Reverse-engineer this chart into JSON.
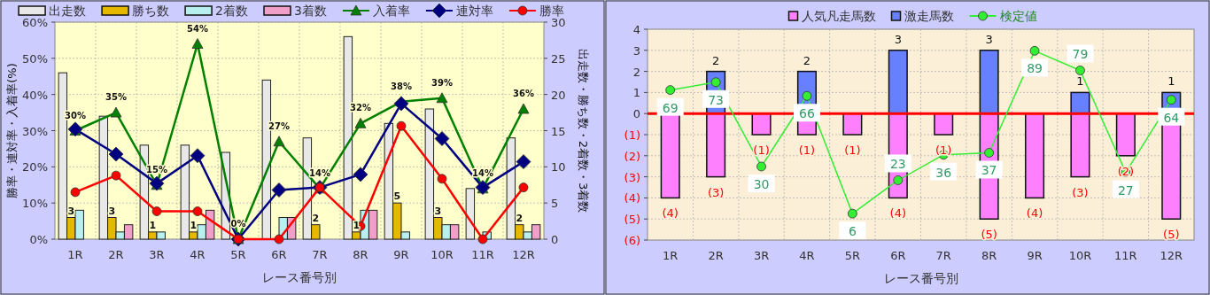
{
  "chart_data": [
    {
      "type": "bar",
      "categories": [
        "1R",
        "2R",
        "3R",
        "4R",
        "5R",
        "6R",
        "7R",
        "8R",
        "9R",
        "10R",
        "11R",
        "12R"
      ],
      "series": [
        {
          "name": "出走数",
          "color": "#e8e8e8",
          "axis": "y2",
          "values": [
            23,
            17,
            13,
            13,
            12,
            22,
            14,
            28,
            16,
            18,
            7,
            14
          ]
        },
        {
          "name": "勝ち数",
          "color": "#e6b800",
          "axis": "y2",
          "values": [
            3,
            3,
            1,
            1,
            0,
            0,
            2,
            1,
            5,
            3,
            0,
            2
          ],
          "value_labels": [
            "3",
            "3",
            "1",
            "1",
            null,
            null,
            "2",
            "1",
            "5",
            "3",
            null,
            "2"
          ]
        },
        {
          "name": "2着数",
          "color": "#b8f0f0",
          "axis": "y2",
          "values": [
            4,
            1,
            1,
            2,
            0,
            3,
            0,
            4,
            1,
            2,
            1,
            1
          ]
        },
        {
          "name": "3着数",
          "color": "#f0a0c8",
          "axis": "y2",
          "values": [
            0,
            2,
            0,
            4,
            0,
            3,
            0,
            4,
            0,
            2,
            0,
            2
          ]
        },
        {
          "name": "入着率",
          "type": "line",
          "color": "#008000",
          "marker": "triangle",
          "values": [
            30,
            35,
            15,
            54,
            0,
            27,
            14,
            32,
            38,
            39,
            14,
            36
          ],
          "value_labels": [
            "30%",
            "35%",
            "15%",
            "54%",
            "0%",
            "27%",
            "14%",
            "32%",
            "38%",
            "39%",
            "14%",
            "36%"
          ]
        },
        {
          "name": "連対率",
          "type": "line",
          "color": "#000080",
          "marker": "diamond",
          "values": [
            30.4,
            23.5,
            15.4,
            23.1,
            0,
            13.6,
            14.3,
            17.9,
            37.5,
            27.8,
            14.3,
            21.4
          ]
        },
        {
          "name": "勝率",
          "type": "line",
          "color": "#ff0000",
          "marker": "circle",
          "values": [
            13.0,
            17.6,
            7.7,
            7.7,
            0,
            0,
            14.3,
            3.6,
            31.3,
            16.7,
            0,
            14.3
          ]
        }
      ],
      "ylim": [
        0,
        60
      ],
      "yticks": [
        {
          "value": 0,
          "label": "0%"
        },
        {
          "value": 10,
          "label": "10%"
        },
        {
          "value": 20,
          "label": "20%"
        },
        {
          "value": 30,
          "label": "30%"
        },
        {
          "value": 40,
          "label": "40%"
        },
        {
          "value": 50,
          "label": "50%"
        },
        {
          "value": 60,
          "label": "60%"
        }
      ],
      "y2lim": [
        0,
        30
      ],
      "y2ticks": [
        0,
        5,
        10,
        15,
        20,
        25,
        30
      ],
      "xlabel": "レース番号別",
      "ylabel": "勝率・連対率・入着率(%)",
      "y2label": "出走数・勝ち数・2着数・3着数",
      "grid": true,
      "legend": "top"
    },
    {
      "type": "bar",
      "stacked": true,
      "categories": [
        "1R",
        "2R",
        "3R",
        "4R",
        "5R",
        "6R",
        "7R",
        "8R",
        "9R",
        "10R",
        "11R",
        "12R"
      ],
      "series": [
        {
          "name": "人気凡走馬数",
          "color": "#ff80ff",
          "values": [
            -4,
            -3,
            -1,
            -1,
            -1,
            -4,
            -1,
            -5,
            -4,
            -3,
            -2,
            -5
          ],
          "value_labels": [
            "(4)",
            "(3)",
            "(1)",
            "(1)",
            "(1)",
            "(4)",
            "(1)",
            "(5)",
            "(4)",
            "(3)",
            "(2)",
            "(5)"
          ]
        },
        {
          "name": "激走馬数",
          "color": "#6680ff",
          "values": [
            0,
            2,
            0,
            2,
            0,
            3,
            0,
            3,
            0,
            1,
            0,
            1
          ],
          "value_labels": [
            null,
            "2",
            null,
            "2",
            null,
            "3",
            null,
            "3",
            null,
            "1",
            null,
            "1"
          ]
        },
        {
          "name": "検定値",
          "type": "line",
          "color": "#33ee33",
          "marker": "circle",
          "axis": "y2",
          "values": [
            69,
            73,
            30,
            66,
            6,
            23,
            36,
            37,
            89,
            79,
            27,
            64
          ],
          "value_labels": [
            "69",
            "73",
            "30",
            "66",
            "6",
            "23",
            "36",
            "37",
            "89",
            "79",
            "27",
            "64"
          ]
        }
      ],
      "ylim": [
        -6,
        4
      ],
      "yticks": [
        {
          "value": -6,
          "label": "(6)"
        },
        {
          "value": -5,
          "label": "(5)"
        },
        {
          "value": -4,
          "label": "(4)"
        },
        {
          "value": -3,
          "label": "(3)"
        },
        {
          "value": -2,
          "label": "(2)"
        },
        {
          "value": -1,
          "label": "(1)"
        },
        0,
        1,
        2,
        3,
        4
      ],
      "y2lim": [
        -7.5,
        100
      ],
      "ref_lines": [
        {
          "axis": "y",
          "value": 0,
          "color": "#ff0000"
        }
      ],
      "xlabel": "レース番号別",
      "grid": true,
      "legend": "top"
    }
  ]
}
